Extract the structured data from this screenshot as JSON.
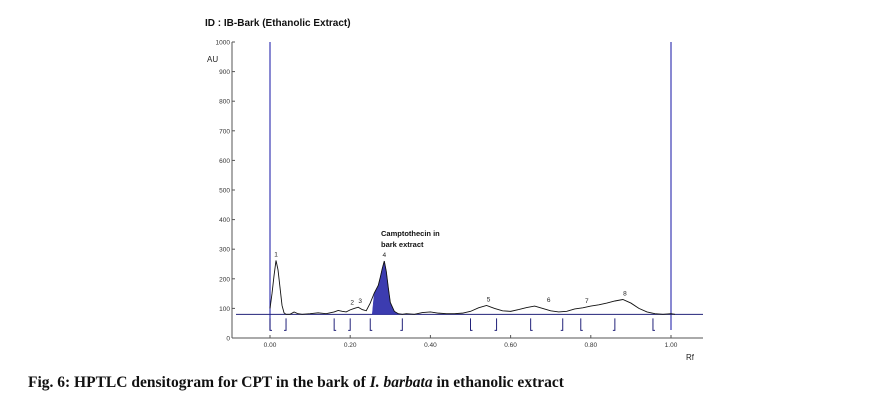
{
  "chart_data": {
    "type": "line",
    "title": "ID : IB-Bark (Ethanolic Extract)",
    "ylabel": "AU",
    "xlabel": "Rf",
    "ylim": [
      0,
      1000
    ],
    "xlim": [
      -0.1,
      1.07
    ],
    "y_ticks": [
      0,
      100,
      200,
      300,
      400,
      500,
      600,
      700,
      800,
      900,
      1000
    ],
    "y_tick_labels": [
      "0",
      "100",
      "200",
      "300",
      "400",
      "500",
      "600",
      "700",
      "800",
      "900",
      "1000"
    ],
    "x_ticks": [
      0.0,
      0.2,
      0.4,
      0.6,
      0.8,
      1.0
    ],
    "x_tick_labels": [
      "0.00",
      "0.20",
      "0.40",
      "0.60",
      "0.80",
      "1.00"
    ],
    "baseline_au": 80,
    "front_lines_rf": [
      0.0,
      1.0
    ],
    "colors": {
      "trace": "#111111",
      "front_line": "#3b3bb3",
      "fill": "#2828a8",
      "baseline": "#23237a"
    },
    "series": [
      {
        "x": [
          0.0,
          0.005,
          0.01,
          0.015,
          0.02,
          0.025,
          0.03,
          0.035,
          0.04,
          0.05,
          0.06,
          0.07,
          0.08,
          0.1,
          0.12,
          0.14,
          0.16,
          0.17,
          0.18,
          0.19,
          0.2,
          0.21,
          0.22,
          0.23,
          0.24,
          0.25,
          0.26,
          0.27,
          0.275,
          0.28,
          0.285,
          0.29,
          0.295,
          0.3,
          0.31,
          0.32,
          0.33,
          0.34,
          0.36,
          0.38,
          0.4,
          0.42,
          0.44,
          0.46,
          0.48,
          0.5,
          0.52,
          0.54,
          0.56,
          0.58,
          0.6,
          0.62,
          0.64,
          0.66,
          0.68,
          0.7,
          0.72,
          0.74,
          0.76,
          0.78,
          0.8,
          0.82,
          0.84,
          0.86,
          0.88,
          0.9,
          0.92,
          0.94,
          0.96,
          0.98,
          1.0,
          1.01
        ],
        "y": [
          100,
          150,
          210,
          262,
          230,
          170,
          110,
          85,
          80,
          80,
          88,
          82,
          80,
          82,
          85,
          82,
          88,
          93,
          90,
          88,
          95,
          100,
          104,
          96,
          92,
          118,
          152,
          178,
          205,
          235,
          260,
          225,
          170,
          120,
          90,
          82,
          80,
          82,
          80,
          86,
          88,
          84,
          82,
          82,
          84,
          90,
          102,
          110,
          100,
          92,
          90,
          96,
          103,
          108,
          100,
          92,
          88,
          90,
          98,
          102,
          108,
          112,
          118,
          125,
          130,
          118,
          100,
          88,
          82,
          80,
          82,
          80
        ]
      }
    ],
    "peaks": [
      {
        "label": "1",
        "rf": 0.015,
        "au": 262
      },
      {
        "label": "2",
        "rf": 0.205,
        "au": 99
      },
      {
        "label": "3",
        "rf": 0.225,
        "au": 104
      },
      {
        "label": "4",
        "rf": 0.285,
        "au": 260
      },
      {
        "label": "5",
        "rf": 0.545,
        "au": 110
      },
      {
        "label": "6",
        "rf": 0.695,
        "au": 108
      },
      {
        "label": "7",
        "rf": 0.79,
        "au": 104
      },
      {
        "label": "8",
        "rf": 0.885,
        "au": 130
      }
    ],
    "shaded_region_rf": [
      0.255,
      0.33
    ],
    "integration_bounds_rf": [
      0.0,
      0.04,
      0.16,
      0.2,
      0.25,
      0.33,
      0.5,
      0.565,
      0.65,
      0.73,
      0.775,
      0.86,
      0.955
    ],
    "annotation": {
      "lines": [
        "Camptothecin in",
        "bark extract"
      ]
    }
  },
  "caption": {
    "prefix": "Fig. 6: HPTLC densitogram for CPT in the bark of ",
    "species": "I. barbata",
    "suffix": " in ethanolic extract"
  }
}
